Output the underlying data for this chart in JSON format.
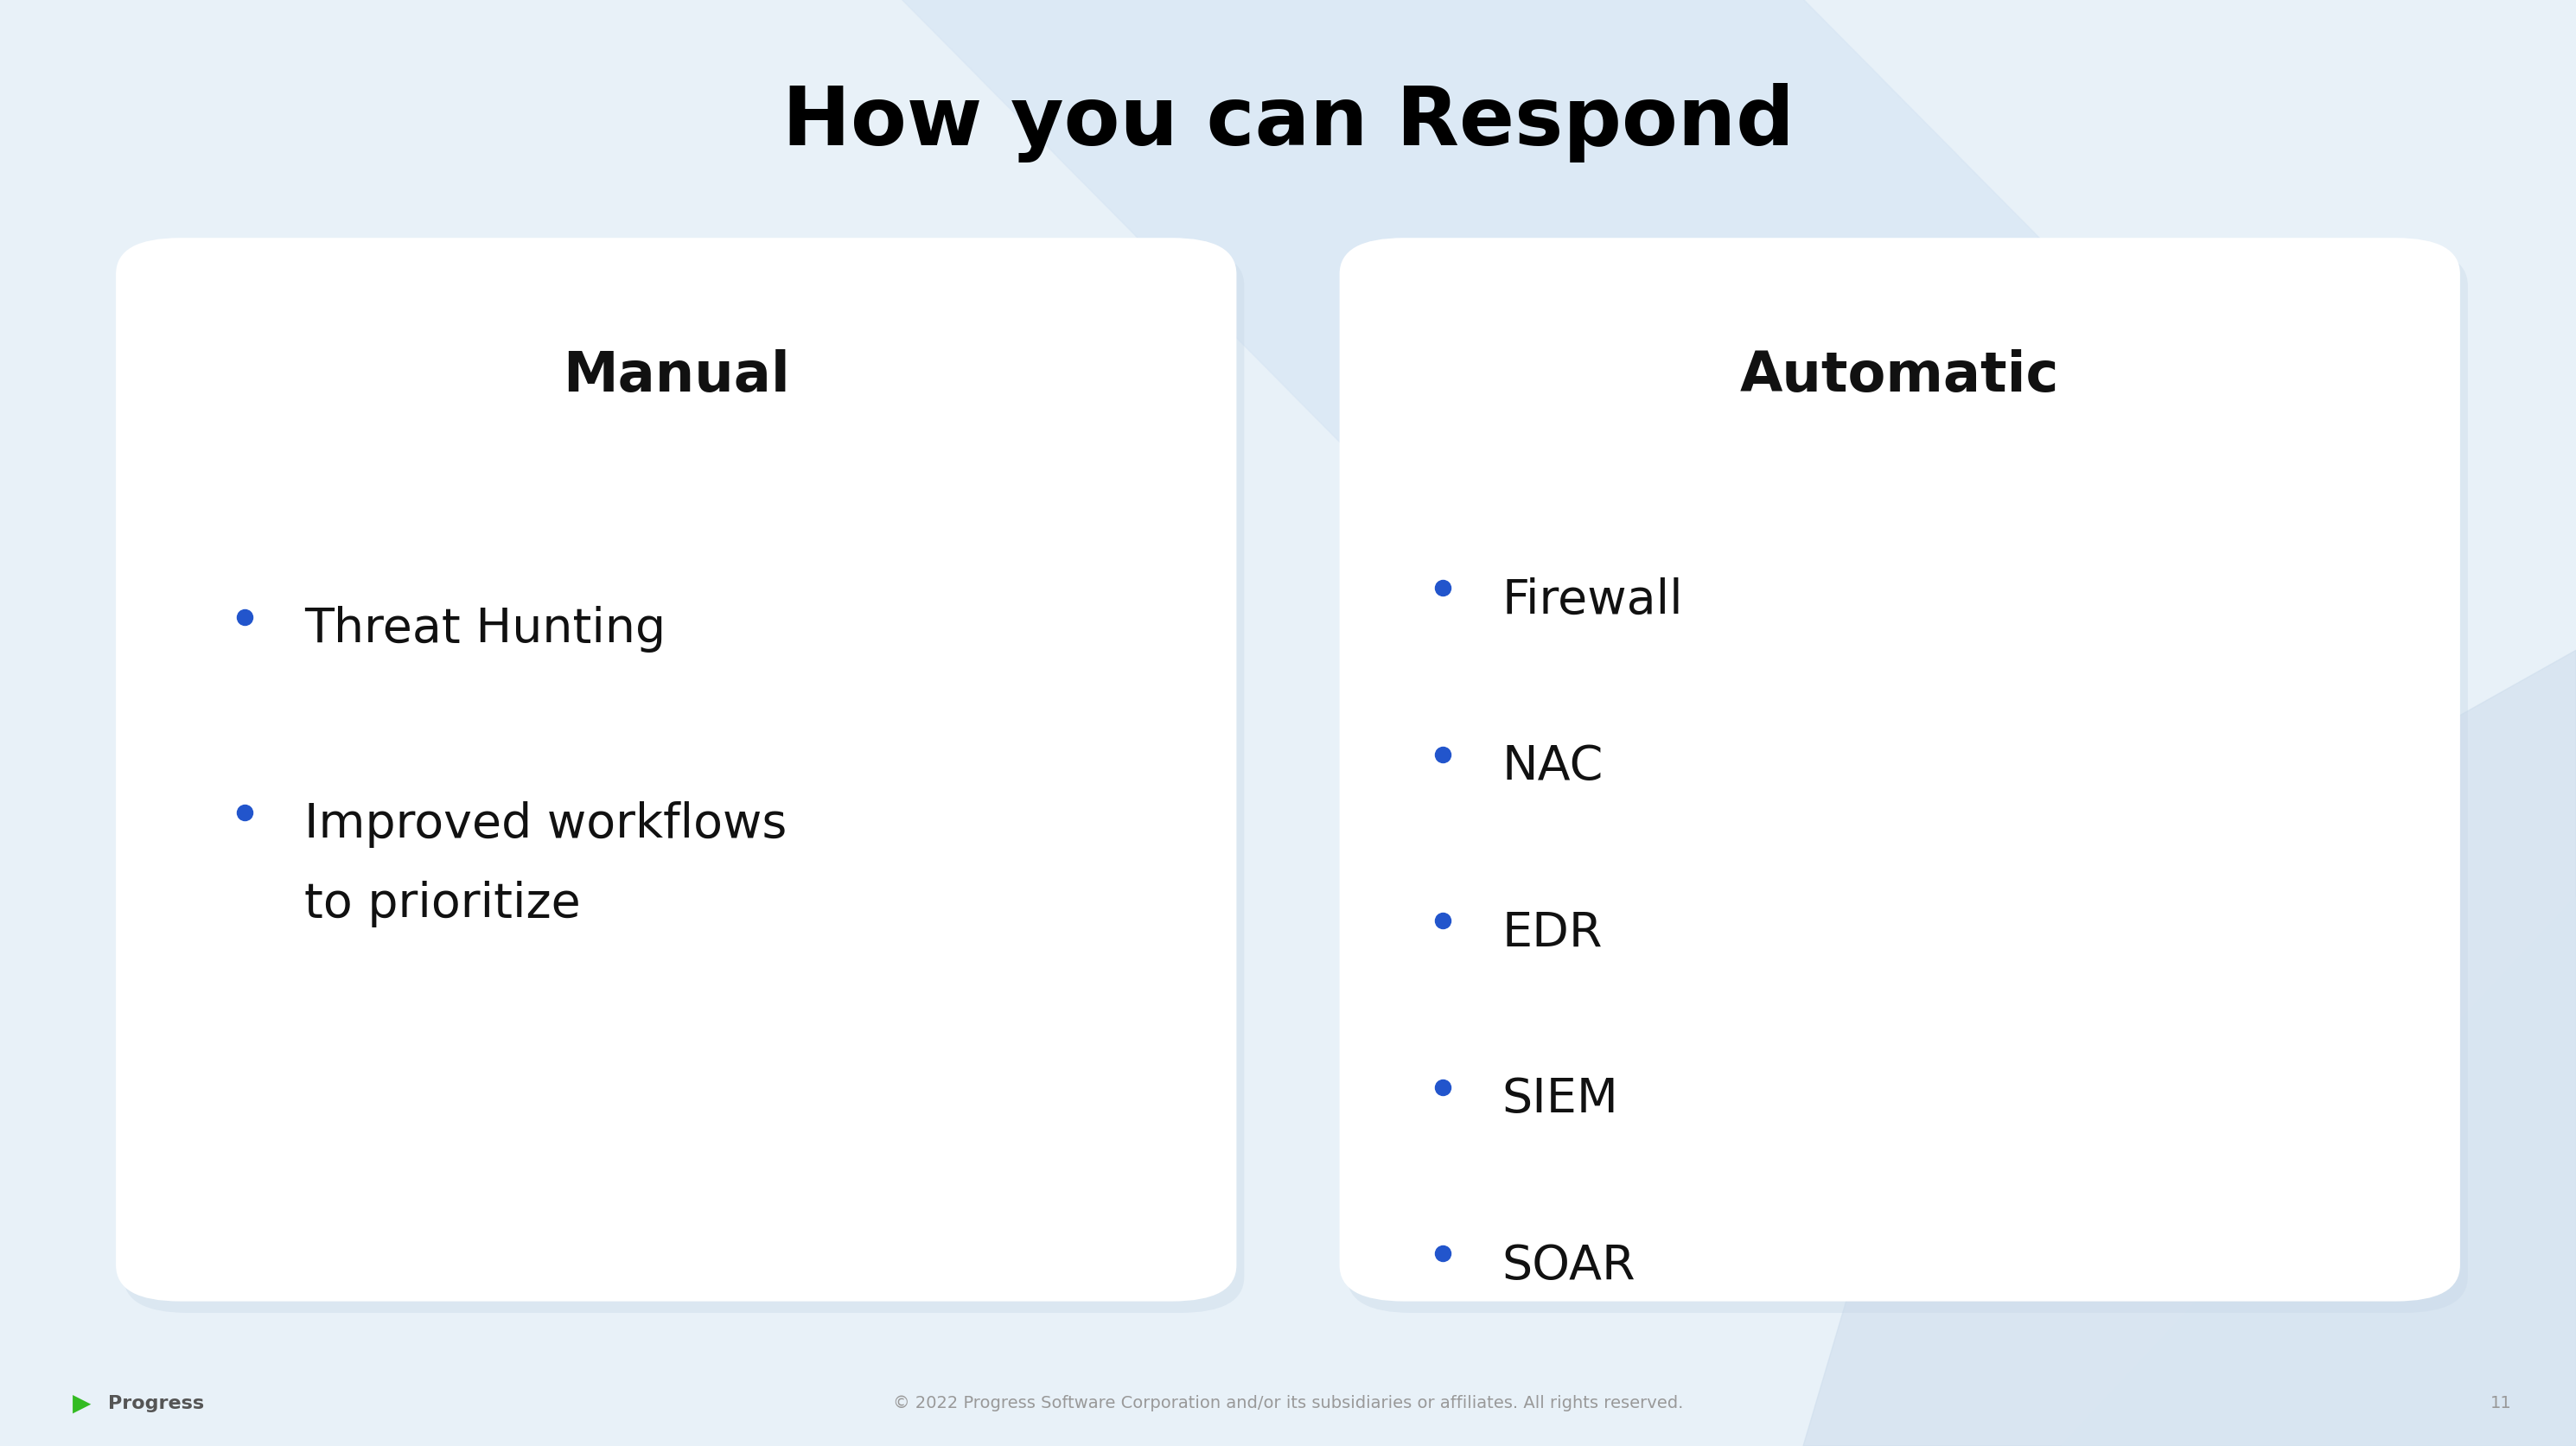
{
  "title": "How you can Respond",
  "title_fontsize": 68,
  "title_color": "#000000",
  "title_fontweight": "bold",
  "bg_color": "#e8f0f8",
  "card_bg": "#ffffff",
  "left_card": {
    "header": "Manual",
    "header_fontsize": 46,
    "header_fontweight": "bold",
    "items": [
      "Threat Hunting",
      "Improved workflows\nto prioritize"
    ],
    "item_fontsize": 40,
    "bullet_color": "#2255cc",
    "text_color": "#111111"
  },
  "right_card": {
    "header": "Automatic",
    "header_fontsize": 46,
    "header_fontweight": "bold",
    "items": [
      "Firewall",
      "NAC",
      "EDR",
      "SIEM",
      "SOAR"
    ],
    "item_fontsize": 40,
    "bullet_color": "#2255cc",
    "text_color": "#111111"
  },
  "footer_text": "© 2022 Progress Software Corporation and/or its subsidiaries or affiliates. All rights reserved.",
  "footer_page": "11",
  "footer_color": "#999999",
  "footer_fontsize": 14,
  "progress_text": "Progress",
  "progress_color": "#44aa22",
  "progress_fontsize": 16
}
